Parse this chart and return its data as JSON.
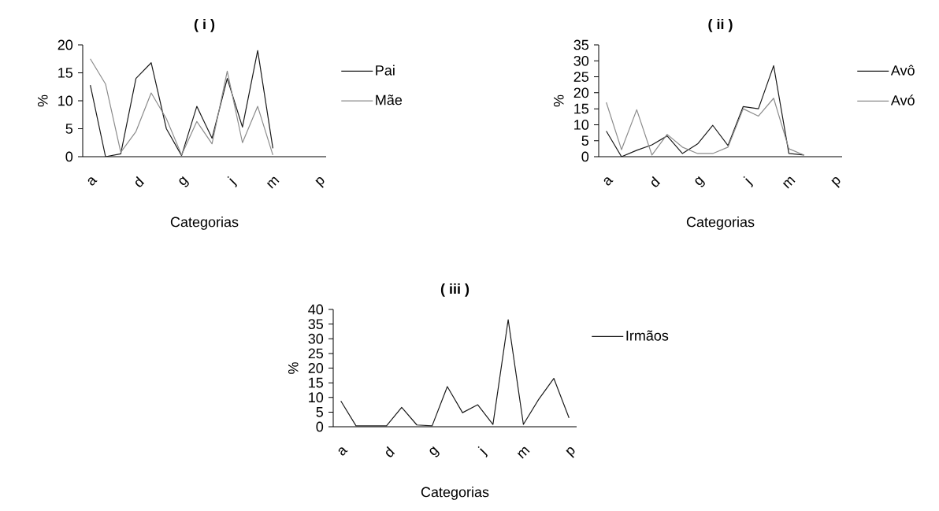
{
  "chart_data": [
    {
      "type": "line",
      "title": "( i )",
      "xlabel": "Categorias",
      "ylabel": "%",
      "categories": [
        "a",
        null,
        null,
        "d",
        null,
        null,
        "g",
        null,
        null,
        "j",
        null,
        null,
        "m",
        null,
        null,
        "p"
      ],
      "ylim": [
        0,
        20
      ],
      "yticks": [
        0,
        5,
        10,
        15,
        20
      ],
      "legend": "right",
      "series": [
        {
          "name": "Pai",
          "color": "#1a1a1a",
          "values": [
            12.8,
            0,
            0.5,
            14,
            16.8,
            5,
            0.2,
            9,
            3.3,
            14,
            5.3,
            19,
            1.5,
            null,
            null,
            null
          ]
        },
        {
          "name": "Mãe",
          "color": "#8c8c8c",
          "values": [
            17.5,
            13,
            0.8,
            4.5,
            11.4,
            6.8,
            0.3,
            6.3,
            2.3,
            15.3,
            2.5,
            9,
            0.3,
            null,
            null,
            null
          ]
        }
      ]
    },
    {
      "type": "line",
      "title": "( ii )",
      "xlabel": "Categorias",
      "ylabel": "%",
      "categories": [
        "a",
        null,
        null,
        "d",
        null,
        null,
        "g",
        null,
        null,
        "j",
        null,
        null,
        "m",
        null,
        null,
        "p"
      ],
      "ylim": [
        0,
        35
      ],
      "yticks": [
        0,
        5,
        10,
        15,
        20,
        25,
        30,
        35
      ],
      "legend": "right",
      "series": [
        {
          "name": "Avô",
          "color": "#1a1a1a",
          "values": [
            8,
            0,
            2,
            3.7,
            6.5,
            1,
            4,
            9.8,
            3.5,
            15.7,
            15,
            28.5,
            1,
            0.5,
            null,
            null
          ]
        },
        {
          "name": "Avó",
          "color": "#8c8c8c",
          "values": [
            17,
            2.2,
            14.7,
            0.5,
            7,
            3,
            1,
            1,
            3,
            15,
            12.7,
            18.3,
            2.5,
            0.5,
            null,
            null
          ]
        }
      ]
    },
    {
      "type": "line",
      "title": "( iii )",
      "xlabel": "Categorias",
      "ylabel": "%",
      "categories": [
        "a",
        null,
        null,
        "d",
        null,
        null,
        "g",
        null,
        null,
        "j",
        null,
        null,
        "m",
        null,
        null,
        "p"
      ],
      "ylim": [
        0,
        40
      ],
      "yticks": [
        0,
        5,
        10,
        15,
        20,
        25,
        30,
        35,
        40
      ],
      "legend": "right",
      "series": [
        {
          "name": "Irmãos",
          "color": "#1a1a1a",
          "values": [
            8.8,
            0.3,
            0.3,
            0.3,
            6.6,
            0.6,
            0.3,
            13.7,
            4.8,
            7.5,
            0.8,
            36.5,
            0.8,
            9.3,
            16.5,
            3
          ]
        }
      ]
    }
  ]
}
